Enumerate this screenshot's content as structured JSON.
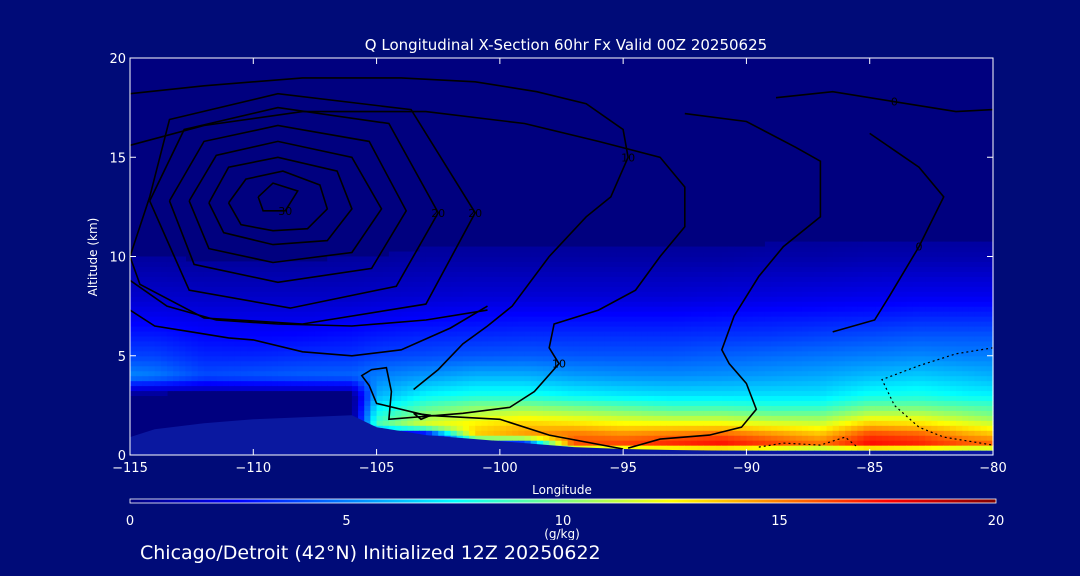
{
  "chart_data": {
    "type": "heatmap",
    "title": "Q Longitudinal X-Section 60hr  Fx Valid 00Z 20250625",
    "xlabel": "Longitude",
    "ylabel": "Altitude (km)",
    "xlim": [
      -115,
      -80
    ],
    "ylim": [
      0,
      20
    ],
    "x_ticks": [
      -115,
      -110,
      -105,
      -100,
      -95,
      -90,
      -85,
      -80
    ],
    "x_tick_labels": [
      "−115",
      "−110",
      "−105",
      "−100",
      "−95",
      "−90",
      "−85",
      "−80"
    ],
    "y_ticks": [
      0,
      5,
      10,
      15,
      20
    ],
    "y_tick_labels": [
      "0",
      "5",
      "10",
      "15",
      "20"
    ],
    "grid": false,
    "colorbar": {
      "label": "(g/kg)",
      "range": [
        0,
        20
      ],
      "ticks": [
        0,
        5,
        10,
        15,
        20
      ],
      "tick_labels": [
        "0",
        "5",
        "10",
        "15",
        "20"
      ],
      "colormap": [
        "#00007f",
        "#0000ff",
        "#007fff",
        "#00ffff",
        "#7fff7f",
        "#ffff00",
        "#ff7f00",
        "#ff0000",
        "#7f0000"
      ]
    },
    "q_field_altitudes_km": [
      0,
      0.5,
      1,
      1.5,
      2,
      2.5,
      3,
      4,
      5,
      6,
      7,
      8,
      10,
      12,
      20
    ],
    "q_field": [
      {
        "lon": -115.0,
        "terrain_km": 0.9,
        "q": [
          0,
          0,
          0,
          0,
          0,
          0,
          0,
          5.2,
          3.8,
          3.0,
          2.2,
          1.5,
          0.6,
          0.2,
          0.0
        ]
      },
      {
        "lon": -114.0,
        "terrain_km": 1.3,
        "q": [
          0,
          0,
          0,
          0,
          0,
          0,
          0,
          5.0,
          3.8,
          3.0,
          2.2,
          1.5,
          0.6,
          0.2,
          0.0
        ]
      },
      {
        "lon": -112.0,
        "terrain_km": 1.6,
        "q": [
          0,
          0,
          0,
          0,
          0,
          0,
          0,
          4.0,
          3.2,
          2.6,
          2.0,
          1.4,
          0.5,
          0.2,
          0.0
        ]
      },
      {
        "lon": -110.0,
        "terrain_km": 1.8,
        "q": [
          0,
          0,
          0,
          0,
          0,
          0,
          0,
          4.2,
          3.2,
          2.5,
          2.0,
          1.4,
          0.5,
          0.2,
          0.0
        ]
      },
      {
        "lon": -108.0,
        "terrain_km": 1.9,
        "q": [
          0,
          0,
          0,
          0,
          0,
          0,
          0,
          4.4,
          3.4,
          2.6,
          2.0,
          1.4,
          0.5,
          0.2,
          0.0
        ]
      },
      {
        "lon": -106.0,
        "terrain_km": 2.0,
        "q": [
          0,
          0,
          0,
          0,
          0,
          0,
          0,
          4.5,
          3.5,
          2.8,
          2.1,
          1.4,
          0.6,
          0.2,
          0.0
        ]
      },
      {
        "lon": -105.0,
        "terrain_km": 1.4,
        "q": [
          0,
          0,
          0,
          9.0,
          8.0,
          7.0,
          6.0,
          5.0,
          3.8,
          3.0,
          2.2,
          1.5,
          0.6,
          0.2,
          0.0
        ]
      },
      {
        "lon": -103.0,
        "terrain_km": 1.0,
        "q": [
          0,
          0,
          0,
          12.0,
          10.5,
          9.0,
          7.5,
          5.5,
          4.0,
          3.2,
          2.4,
          1.6,
          0.7,
          0.2,
          0.0
        ]
      },
      {
        "lon": -101.0,
        "terrain_km": 0.8,
        "q": [
          0,
          0,
          13.5,
          13.0,
          11.5,
          10.0,
          8.0,
          6.0,
          4.2,
          3.3,
          2.5,
          1.7,
          0.7,
          0.2,
          0.0
        ]
      },
      {
        "lon": -99.0,
        "terrain_km": 0.6,
        "q": [
          0,
          0,
          14.5,
          13.8,
          12.0,
          10.0,
          8.0,
          6.0,
          4.3,
          3.4,
          2.6,
          1.7,
          0.7,
          0.2,
          0.0
        ]
      },
      {
        "lon": -97.0,
        "terrain_km": 0.4,
        "q": [
          0,
          16.0,
          15.5,
          13.5,
          11.5,
          9.5,
          7.5,
          5.6,
          4.2,
          3.4,
          2.6,
          1.7,
          0.7,
          0.2,
          0.0
        ]
      },
      {
        "lon": -95.0,
        "terrain_km": 0.3,
        "q": [
          0,
          16.5,
          15.0,
          13.0,
          11.0,
          9.0,
          7.2,
          5.4,
          4.2,
          3.4,
          2.6,
          1.7,
          0.7,
          0.2,
          0.0
        ]
      },
      {
        "lon": -93.0,
        "terrain_km": 0.25,
        "q": [
          0,
          17.0,
          15.5,
          13.0,
          10.5,
          8.5,
          7.0,
          5.3,
          4.2,
          3.4,
          2.6,
          1.7,
          0.7,
          0.2,
          0.0
        ]
      },
      {
        "lon": -91.0,
        "terrain_km": 0.22,
        "q": [
          0,
          17.5,
          16.0,
          13.0,
          10.5,
          8.5,
          7.0,
          5.4,
          4.4,
          3.5,
          2.7,
          1.8,
          0.7,
          0.2,
          0.0
        ]
      },
      {
        "lon": -89.0,
        "terrain_km": 0.2,
        "q": [
          0,
          16.5,
          15.0,
          12.5,
          10.0,
          8.2,
          7.0,
          5.6,
          4.6,
          3.6,
          2.8,
          1.9,
          0.8,
          0.2,
          0.0
        ]
      },
      {
        "lon": -87.0,
        "terrain_km": 0.2,
        "q": [
          0,
          15.5,
          14.0,
          12.0,
          10.0,
          8.2,
          7.0,
          5.8,
          4.8,
          3.8,
          2.9,
          2.0,
          0.8,
          0.2,
          0.0
        ]
      },
      {
        "lon": -85.0,
        "terrain_km": 0.2,
        "q": [
          0,
          17.5,
          16.5,
          14.0,
          11.5,
          9.5,
          7.8,
          6.2,
          5.0,
          4.0,
          3.0,
          2.1,
          0.9,
          0.2,
          0.0
        ]
      },
      {
        "lon": -83.0,
        "terrain_km": 0.2,
        "q": [
          0,
          17.0,
          16.0,
          13.5,
          11.5,
          9.5,
          8.0,
          6.5,
          5.2,
          4.2,
          3.2,
          2.2,
          0.9,
          0.2,
          0.0
        ]
      },
      {
        "lon": -81.0,
        "terrain_km": 0.2,
        "q": [
          0,
          16.0,
          14.5,
          12.5,
          10.5,
          9.0,
          7.5,
          6.2,
          5.0,
          4.2,
          3.2,
          2.2,
          0.9,
          0.2,
          0.0
        ]
      },
      {
        "lon": -80.0,
        "terrain_km": 0.2,
        "q": [
          0,
          16.0,
          14.0,
          12.0,
          10.0,
          8.8,
          7.4,
          6.0,
          5.0,
          4.2,
          3.2,
          2.2,
          0.9,
          0.2,
          0.0
        ]
      }
    ],
    "contours": [
      {
        "label": "30",
        "pts": [
          [
            -109.8,
            13.0
          ],
          [
            -109.2,
            13.7
          ],
          [
            -108.2,
            13.3
          ],
          [
            -108.7,
            12.3
          ],
          [
            -109.6,
            12.3
          ],
          [
            -109.8,
            13.0
          ]
        ]
      },
      {
        "label": "",
        "pts": [
          [
            -111.0,
            12.7
          ],
          [
            -110.3,
            13.9
          ],
          [
            -108.8,
            14.3
          ],
          [
            -107.3,
            13.6
          ],
          [
            -107.0,
            12.4
          ],
          [
            -107.8,
            11.4
          ],
          [
            -109.2,
            11.3
          ],
          [
            -110.5,
            11.6
          ],
          [
            -111.0,
            12.7
          ]
        ]
      },
      {
        "label": "",
        "pts": [
          [
            -111.8,
            12.7
          ],
          [
            -111.0,
            14.5
          ],
          [
            -109.0,
            15.0
          ],
          [
            -106.6,
            14.3
          ],
          [
            -106.0,
            12.4
          ],
          [
            -107.0,
            10.8
          ],
          [
            -109.2,
            10.6
          ],
          [
            -111.2,
            11.2
          ],
          [
            -111.8,
            12.7
          ]
        ]
      },
      {
        "label": "",
        "pts": [
          [
            -112.6,
            12.8
          ],
          [
            -111.5,
            15.1
          ],
          [
            -109.0,
            15.8
          ],
          [
            -106.0,
            15.0
          ],
          [
            -104.8,
            12.4
          ],
          [
            -106.0,
            10.2
          ],
          [
            -109.2,
            9.7
          ],
          [
            -111.8,
            10.4
          ],
          [
            -112.6,
            12.8
          ]
        ]
      },
      {
        "label": "",
        "pts": [
          [
            -113.4,
            12.8
          ],
          [
            -112.0,
            15.8
          ],
          [
            -109.0,
            16.6
          ],
          [
            -105.3,
            15.8
          ],
          [
            -103.8,
            12.3
          ],
          [
            -105.2,
            9.4
          ],
          [
            -109.0,
            8.7
          ],
          [
            -112.4,
            9.6
          ],
          [
            -113.4,
            12.8
          ]
        ]
      },
      {
        "label": "20",
        "pts": [
          [
            -114.2,
            12.8
          ],
          [
            -112.8,
            16.4
          ],
          [
            -109.0,
            17.5
          ],
          [
            -104.5,
            16.7
          ],
          [
            -102.5,
            12.2
          ],
          [
            -104.2,
            8.5
          ],
          [
            -108.5,
            7.4
          ],
          [
            -112.6,
            8.3
          ],
          [
            -114.2,
            12.8
          ]
        ]
      },
      {
        "label": "20",
        "pts": [
          [
            -115.0,
            10.0
          ],
          [
            -114.2,
            13.0
          ],
          [
            -113.4,
            16.9
          ],
          [
            -109.0,
            18.2
          ],
          [
            -103.6,
            17.4
          ],
          [
            -101.0,
            12.2
          ],
          [
            -103.0,
            7.6
          ],
          [
            -108.0,
            6.6
          ],
          [
            -112.0,
            6.9
          ],
          [
            -114.6,
            8.6
          ],
          [
            -115.0,
            10.0
          ]
        ]
      },
      {
        "label": "",
        "pts": [
          [
            -115.0,
            8.8
          ],
          [
            -113.5,
            7.5
          ],
          [
            -111.5,
            6.8
          ],
          [
            -109.0,
            6.6
          ],
          [
            -106.0,
            6.5
          ],
          [
            -103.0,
            6.8
          ],
          [
            -100.5,
            7.3
          ]
        ]
      },
      {
        "label": "",
        "pts": [
          [
            -115.0,
            7.3
          ],
          [
            -114.0,
            6.5
          ],
          [
            -112.5,
            6.2
          ],
          [
            -111.0,
            5.9
          ],
          [
            -110.0,
            5.8
          ],
          [
            -108.0,
            5.2
          ],
          [
            -106.0,
            5.0
          ],
          [
            -104.0,
            5.3
          ],
          [
            -102.0,
            6.4
          ],
          [
            -100.5,
            7.5
          ]
        ]
      },
      {
        "label": "10",
        "pts": [
          [
            -115.0,
            18.2
          ],
          [
            -112.0,
            18.6
          ],
          [
            -108.0,
            19.0
          ],
          [
            -104.0,
            19.0
          ],
          [
            -101.0,
            18.8
          ],
          [
            -98.5,
            18.3
          ],
          [
            -96.5,
            17.7
          ],
          [
            -95.0,
            16.4
          ],
          [
            -94.8,
            15.0
          ],
          [
            -95.5,
            13.0
          ],
          [
            -96.5,
            12.0
          ],
          [
            -98.0,
            10.0
          ],
          [
            -99.5,
            7.5
          ],
          [
            -100.5,
            6.5
          ],
          [
            -101.5,
            5.6
          ],
          [
            -102.5,
            4.3
          ],
          [
            -103.5,
            3.3
          ]
        ]
      },
      {
        "label": "10",
        "pts": [
          [
            -115.0,
            15.6
          ],
          [
            -112.0,
            16.6
          ],
          [
            -108.0,
            17.3
          ],
          [
            -103.0,
            17.3
          ],
          [
            -99.0,
            16.7
          ],
          [
            -96.0,
            15.8
          ],
          [
            -93.5,
            15.0
          ],
          [
            -92.5,
            13.5
          ],
          [
            -92.5,
            11.5
          ],
          [
            -93.5,
            10.0
          ],
          [
            -94.5,
            8.3
          ],
          [
            -96.0,
            7.3
          ],
          [
            -97.8,
            6.6
          ],
          [
            -98.0,
            5.4
          ],
          [
            -97.6,
            4.6
          ],
          [
            -98.6,
            3.2
          ],
          [
            -99.6,
            2.4
          ],
          [
            -101.5,
            2.1
          ],
          [
            -104.5,
            1.8
          ],
          [
            -104.4,
            3.2
          ],
          [
            -104.6,
            4.4
          ],
          [
            -105.2,
            4.3
          ],
          [
            -105.6,
            4.0
          ],
          [
            -105.3,
            3.5
          ],
          [
            -105.0,
            2.6
          ],
          [
            -103.0,
            2.0
          ],
          [
            -100.0,
            1.8
          ],
          [
            -98.0,
            1.0
          ],
          [
            -95.0,
            0.3
          ]
        ]
      },
      {
        "label": "",
        "pts": [
          [
            -103.5,
            2.1
          ],
          [
            -102.8,
            2.0
          ],
          [
            -103.2,
            1.8
          ],
          [
            -103.5,
            2.1
          ]
        ]
      },
      {
        "label": "0",
        "pts": [
          [
            -88.8,
            18.0
          ],
          [
            -86.5,
            18.3
          ],
          [
            -84.0,
            17.8
          ],
          [
            -81.5,
            17.3
          ],
          [
            -80.0,
            17.4
          ]
        ]
      },
      {
        "label": "0",
        "pts": [
          [
            -85.0,
            16.2
          ],
          [
            -83.0,
            14.5
          ],
          [
            -82.0,
            13.0
          ],
          [
            -83.0,
            10.5
          ],
          [
            -84.2,
            8.0
          ],
          [
            -84.8,
            6.8
          ],
          [
            -86.5,
            6.2
          ]
        ]
      },
      {
        "label": "",
        "pts": [
          [
            -92.5,
            17.2
          ],
          [
            -90.0,
            16.8
          ],
          [
            -88.0,
            15.5
          ],
          [
            -87.0,
            14.8
          ],
          [
            -87.0,
            12.0
          ],
          [
            -88.5,
            10.5
          ],
          [
            -89.5,
            9.0
          ],
          [
            -90.5,
            7.0
          ],
          [
            -91.0,
            5.3
          ],
          [
            -90.7,
            4.6
          ],
          [
            -90.0,
            3.6
          ],
          [
            -89.6,
            2.3
          ],
          [
            -90.2,
            1.4
          ],
          [
            -91.5,
            1.0
          ],
          [
            -93.5,
            0.8
          ],
          [
            -94.8,
            0.35
          ]
        ]
      },
      {
        "label": "",
        "pts": [
          [
            -80.0,
            5.4
          ],
          [
            -81.5,
            5.1
          ],
          [
            -83.0,
            4.5
          ],
          [
            -84.5,
            3.8
          ],
          [
            -84.0,
            2.5
          ],
          [
            -83.0,
            1.4
          ],
          [
            -82.0,
            0.9
          ],
          [
            -80.0,
            0.5
          ]
        ],
        "dashed": true
      },
      {
        "label": "",
        "pts": [
          [
            -89.5,
            0.4
          ],
          [
            -88.5,
            0.6
          ],
          [
            -87.0,
            0.5
          ],
          [
            -86.0,
            0.9
          ],
          [
            -85.5,
            0.4
          ]
        ],
        "dashed": true
      }
    ]
  },
  "footer": {
    "text": "Chicago/Detroit (42°N) Initialized 12Z 20250622"
  }
}
